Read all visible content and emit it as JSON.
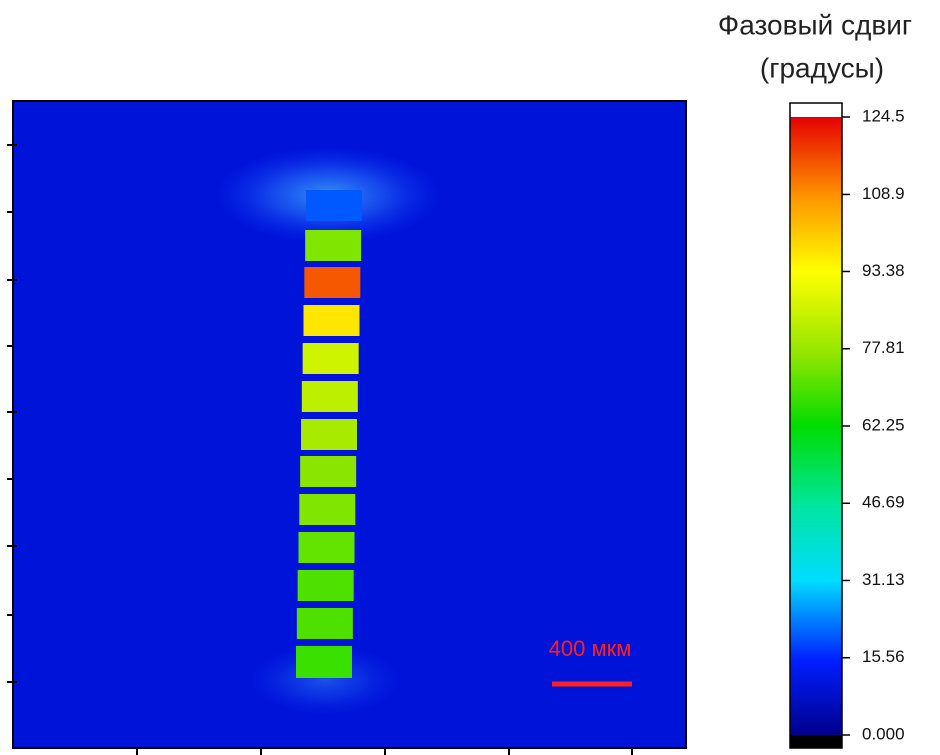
{
  "chart_data": {
    "type": "heatmap",
    "title": [
      "Фазовый сдвиг",
      "(градусы)"
    ],
    "annotation": "400 мкм",
    "background": 10,
    "values": [
      20,
      75,
      115,
      97,
      86,
      83,
      80,
      76,
      75,
      72,
      70,
      70,
      68
    ],
    "clim": [
      0,
      124.5
    ],
    "cticks": [
      {
        "value": 0,
        "label": "0.000"
      },
      15.56,
      31.13,
      46.69,
      62.25,
      77.81,
      93.38,
      108.9,
      124.5
    ]
  }
}
